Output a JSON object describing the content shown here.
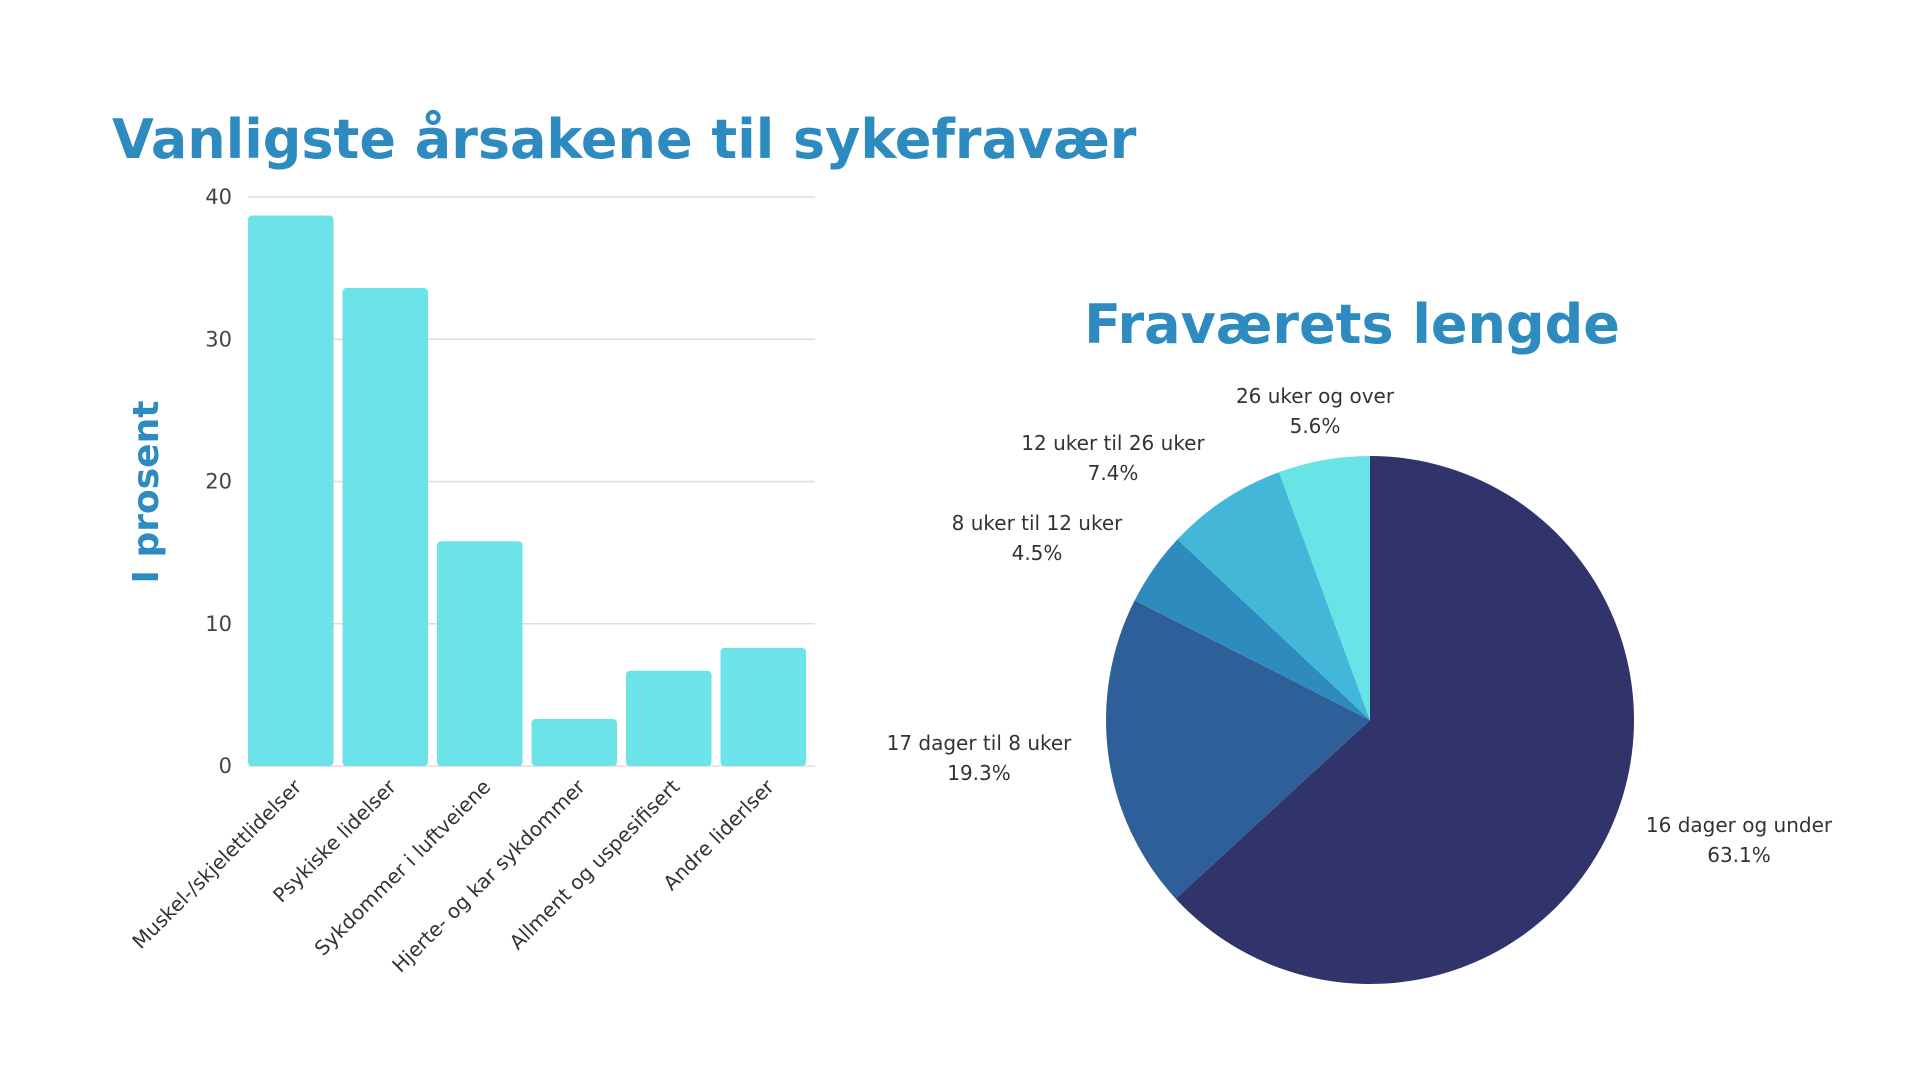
{
  "chart_data": [
    {
      "type": "bar",
      "title": "Vanligste årsakene til sykefravær",
      "ylabel": "I prosent",
      "xlabel": "",
      "ylim": [
        0,
        40
      ],
      "yticks": [
        "0",
        "10",
        "20",
        "30",
        "40"
      ],
      "grid": true,
      "bar_color": "#6be3e8",
      "title_color": "#2d8bc0",
      "categories": [
        "Muskel-/skjelettlidelser",
        "Psykiske lidelser",
        "Sykdommer i luftveiene",
        "Hjerte- og kar sykdommer",
        "Allment og uspesifisert",
        "Andre liderlser"
      ],
      "values": [
        38.7,
        33.6,
        15.8,
        3.3,
        6.7,
        8.3
      ]
    },
    {
      "type": "pie",
      "title": "Fraværets lengde",
      "title_color": "#2d8bc0",
      "slices": [
        {
          "label": "16 dager og under",
          "value_text": "63.1%",
          "value": 63.1,
          "color": "#31336b"
        },
        {
          "label": "17 dager til 8 uker",
          "value_text": "19.3%",
          "value": 19.3,
          "color": "#2e5f99"
        },
        {
          "label": "8 uker til 12 uker",
          "value_text": "4.5%",
          "value": 4.5,
          "color": "#2d8bbd"
        },
        {
          "label": "12 uker til 26 uker",
          "value_text": "7.4%",
          "value": 7.4,
          "color": "#42b7d8"
        },
        {
          "label": "26 uker og over",
          "value_text": "5.6%",
          "value": 5.6,
          "color": "#68e3e6"
        }
      ]
    }
  ]
}
